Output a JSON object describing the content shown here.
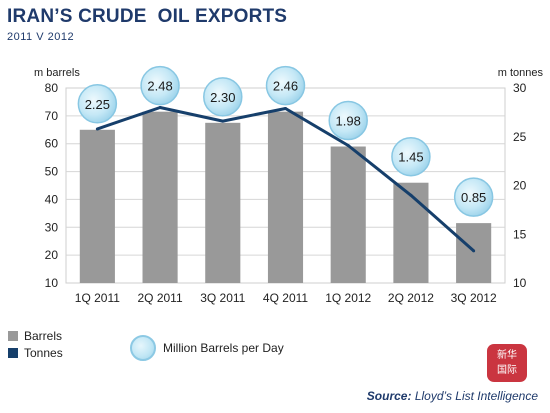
{
  "title": "IRAN’S CRUDE  OIL EXPORTS",
  "subtitle": "2011 V 2012",
  "chart_data": {
    "type": "bar",
    "categories": [
      "1Q 2011",
      "2Q 2011",
      "3Q 2011",
      "4Q 2011",
      "1Q 2012",
      "2Q 2012",
      "3Q 2012"
    ],
    "series": [
      {
        "name": "Barrels",
        "type": "bar",
        "axis": "left",
        "values": [
          65,
          71.5,
          67.5,
          71.5,
          59,
          46,
          31.5
        ],
        "color": "#999999"
      },
      {
        "name": "Tonnes",
        "type": "line",
        "axis": "right",
        "values": [
          25.8,
          28.0,
          26.6,
          27.9,
          24.1,
          19.0,
          13.3
        ],
        "color": "#163f6b"
      },
      {
        "name": "Million Barrels per Day",
        "type": "bubble-label",
        "values": [
          "2.25",
          "2.48",
          "2.30",
          "2.46",
          "1.98",
          "1.45",
          "0.85"
        ]
      }
    ],
    "yleft": {
      "label": "m barrels",
      "ylim": [
        10,
        80
      ],
      "ticks": [
        "10",
        "20",
        "30",
        "40",
        "50",
        "60",
        "70",
        "80"
      ]
    },
    "yright": {
      "label": "m tonnes",
      "ylim": [
        10,
        30
      ],
      "ticks": [
        "10",
        "15",
        "20",
        "25",
        "30"
      ]
    },
    "grid": true,
    "legend": "bottom-left"
  },
  "legend": {
    "barrels": "Barrels",
    "tonnes": "Tonnes",
    "bubble": "Million Barrels per Day"
  },
  "source": {
    "prefix": "Source:",
    "text": "Lloyd’s List Intelligence"
  },
  "watermark": {
    "line1": "新华",
    "line2": "国际"
  },
  "colors": {
    "bar": "#999999",
    "line": "#163f6b",
    "bubble": "#c2e7f5",
    "title": "#1f3a6b"
  }
}
